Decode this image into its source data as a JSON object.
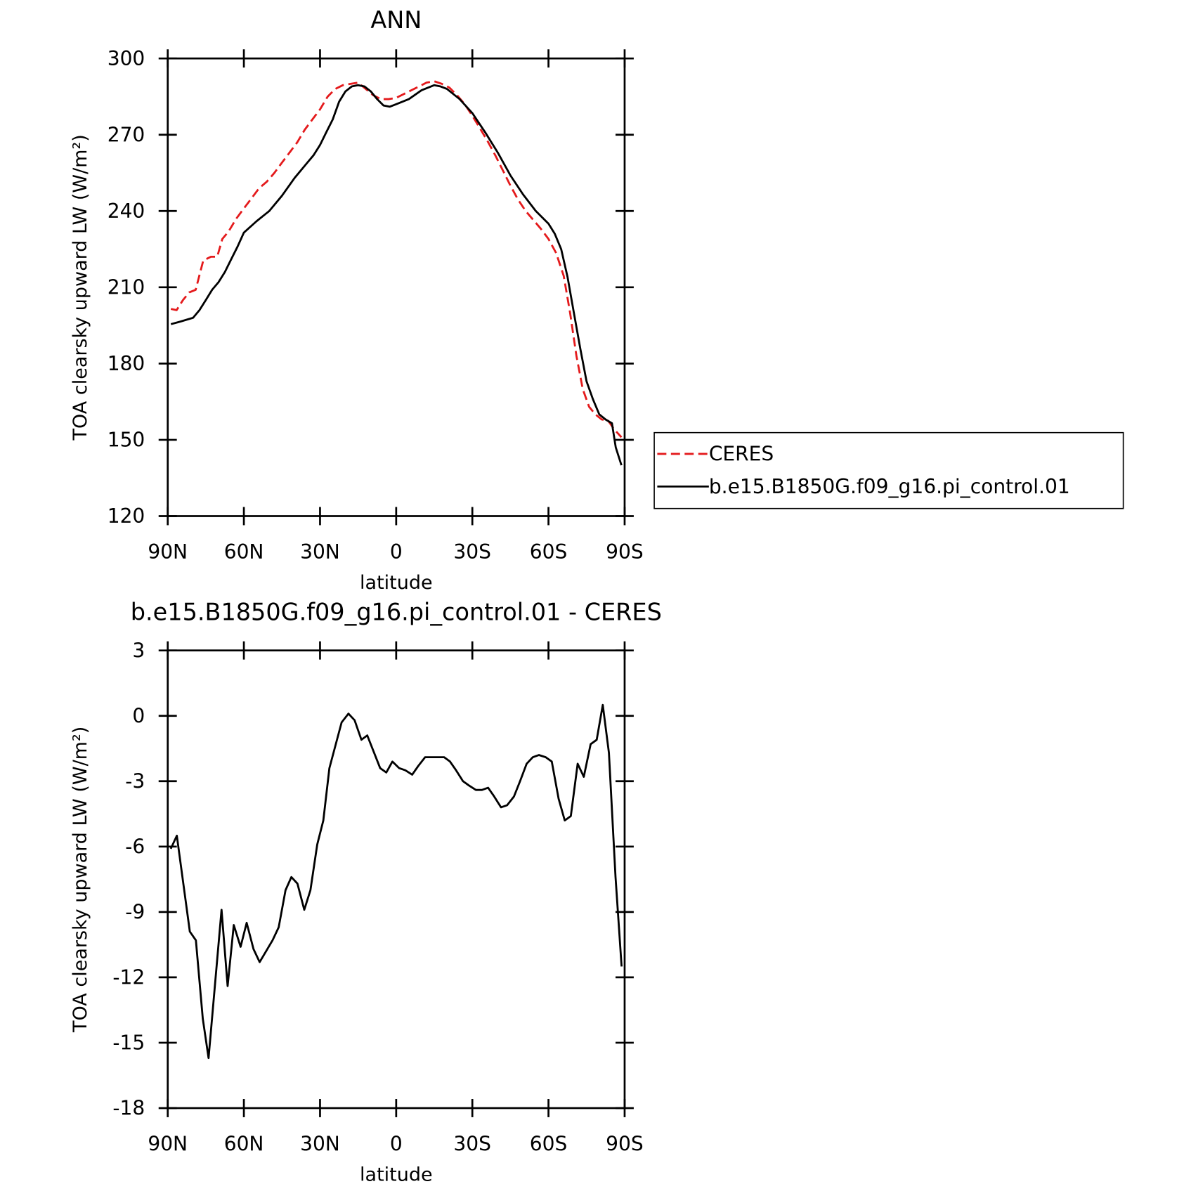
{
  "chart_data": [
    {
      "type": "line",
      "title": "ANN",
      "x_label": "latitude",
      "y_label": "TOA clearsky upward LW (W/m²)",
      "xlim": [
        90,
        -90
      ],
      "xticks": [
        {
          "value": 90,
          "label": "90N"
        },
        {
          "value": 60,
          "label": "60N"
        },
        {
          "value": 30,
          "label": "30N"
        },
        0,
        {
          "value": -30,
          "label": "30S"
        },
        {
          "value": -60,
          "label": "60S"
        },
        {
          "value": -90,
          "label": "90S"
        }
      ],
      "ylim": [
        120,
        300
      ],
      "yticks": [
        120,
        150,
        180,
        210,
        240,
        270,
        300
      ],
      "legend": "right",
      "series": [
        {
          "name": "CERES",
          "color": "#e41a1c",
          "dashed": true,
          "x": [
            88.75,
            86.5,
            84,
            81.5,
            79,
            76,
            73,
            70.5,
            68.5,
            66,
            63,
            60,
            57,
            54,
            51,
            48,
            45,
            42,
            39,
            36,
            33,
            30,
            27,
            24,
            21,
            18,
            15,
            12,
            9,
            6,
            3,
            0,
            -3,
            -6,
            -9,
            -12,
            -15,
            -18,
            -21,
            -24,
            -27,
            -30,
            -33,
            -36,
            -39,
            -42,
            -45,
            -48,
            -51,
            -54,
            -57,
            -60,
            -63,
            -66,
            -68.5,
            -71,
            -73.5,
            -76,
            -78.5,
            -81,
            -83.5,
            -86,
            -88.75
          ],
          "values": [
            201.5,
            201,
            205,
            208,
            209,
            220.5,
            222,
            222,
            229,
            232,
            237,
            241,
            245,
            249,
            251.5,
            255,
            259,
            263,
            267,
            272,
            276,
            280,
            285,
            288,
            289.5,
            290,
            290.5,
            288,
            285.5,
            284,
            284,
            284.5,
            286,
            287.5,
            289,
            290.5,
            291,
            290,
            288.5,
            285.5,
            282,
            277.5,
            272.5,
            267.5,
            262,
            256,
            250,
            244.5,
            240,
            236.5,
            233,
            229,
            223.5,
            214.5,
            200,
            183,
            170,
            163,
            160,
            158,
            157.5,
            154,
            151
          ]
        },
        {
          "name": "b.e15.B1850G.f09_g16.pi_control.01",
          "color": "#000000",
          "dashed": false,
          "x": [
            88.75,
            85,
            80,
            77.5,
            75,
            72.5,
            70,
            67.5,
            65,
            62.5,
            60,
            55,
            50,
            45,
            40,
            35,
            32.5,
            30,
            27.5,
            25,
            22.5,
            20,
            17.5,
            15,
            12.5,
            10,
            7.5,
            5,
            2.5,
            0,
            -5,
            -10,
            -15,
            -17.5,
            -20,
            -25,
            -30,
            -35,
            -40,
            -45,
            -50,
            -55,
            -60,
            -62.5,
            -65,
            -67.5,
            -70,
            -72.5,
            -75,
            -77.5,
            -80,
            -82.5,
            -85,
            -86.5,
            -88.75
          ],
          "values": [
            195.5,
            196.5,
            198,
            201,
            205,
            209,
            212,
            216,
            221,
            226,
            231.5,
            236,
            240,
            246,
            253,
            259,
            262,
            266,
            271,
            276,
            283,
            287,
            289,
            289.5,
            289,
            287,
            284,
            281.5,
            281,
            282,
            284,
            287.5,
            289.5,
            289,
            288,
            284,
            278.5,
            271,
            263,
            254,
            246.5,
            240,
            235,
            231,
            225,
            214,
            200,
            186,
            173,
            166,
            160,
            158,
            156.5,
            147,
            140
          ]
        }
      ]
    },
    {
      "type": "line",
      "title": "b.e15.B1850G.f09_g16.pi_control.01 - CERES",
      "x_label": "latitude",
      "y_label": "TOA clearsky upward LW (W/m²)",
      "xlim": [
        90,
        -90
      ],
      "xticks": [
        {
          "value": 90,
          "label": "90N"
        },
        {
          "value": 60,
          "label": "60N"
        },
        {
          "value": 30,
          "label": "30N"
        },
        0,
        {
          "value": -30,
          "label": "30S"
        },
        {
          "value": -60,
          "label": "60S"
        },
        {
          "value": -90,
          "label": "90S"
        }
      ],
      "ylim": [
        -18,
        3
      ],
      "yticks": [
        -18,
        -15,
        -12,
        -9,
        -6,
        -3,
        0,
        3
      ],
      "series": [
        {
          "color": "#000000",
          "dashed": false,
          "x": [
            88.8,
            86.4,
            81.3,
            78.9,
            76.2,
            73.9,
            68.8,
            66.4,
            64.0,
            61.3,
            58.9,
            56.2,
            53.8,
            48.7,
            46.3,
            43.6,
            41.3,
            38.9,
            36.2,
            33.8,
            31.1,
            28.7,
            26.3,
            21.5,
            18.8,
            16.4,
            13.7,
            11.4,
            6.3,
            3.9,
            1.5,
            -1.2,
            -3.6,
            -6.3,
            -8.7,
            -11.4,
            -13.8,
            -18.9,
            -21.2,
            -23.6,
            -26.3,
            -28.7,
            -31.4,
            -33.8,
            -36.2,
            -38.6,
            -41.3,
            -43.7,
            -46.4,
            -48.8,
            -51.4,
            -53.8,
            -56.2,
            -58.9,
            -61.3,
            -64.0,
            -66.4,
            -68.8,
            -71.5,
            -73.9,
            -76.6,
            -79.0,
            -81.4,
            -83.8,
            -86.4,
            -88.8
          ],
          "values": [
            -6.1,
            -5.5,
            -9.9,
            -10.3,
            -13.9,
            -15.7,
            -8.9,
            -12.4,
            -9.6,
            -10.6,
            -9.5,
            -10.7,
            -11.3,
            -10.3,
            -9.7,
            -8.0,
            -7.4,
            -7.7,
            -8.9,
            -8.0,
            -5.9,
            -4.8,
            -2.4,
            -0.3,
            0.1,
            -0.2,
            -1.1,
            -0.9,
            -2.4,
            -2.6,
            -2.1,
            -2.4,
            -2.5,
            -2.7,
            -2.3,
            -1.9,
            -1.9,
            -1.9,
            -2.1,
            -2.5,
            -3.0,
            -3.2,
            -3.4,
            -3.4,
            -3.3,
            -3.7,
            -4.2,
            -4.1,
            -3.7,
            -3.0,
            -2.2,
            -1.9,
            -1.8,
            -1.9,
            -2.1,
            -3.8,
            -4.8,
            -4.6,
            -2.2,
            -2.8,
            -1.3,
            -1.1,
            0.5,
            -1.7,
            -7.4,
            -11.5
          ]
        }
      ]
    }
  ]
}
